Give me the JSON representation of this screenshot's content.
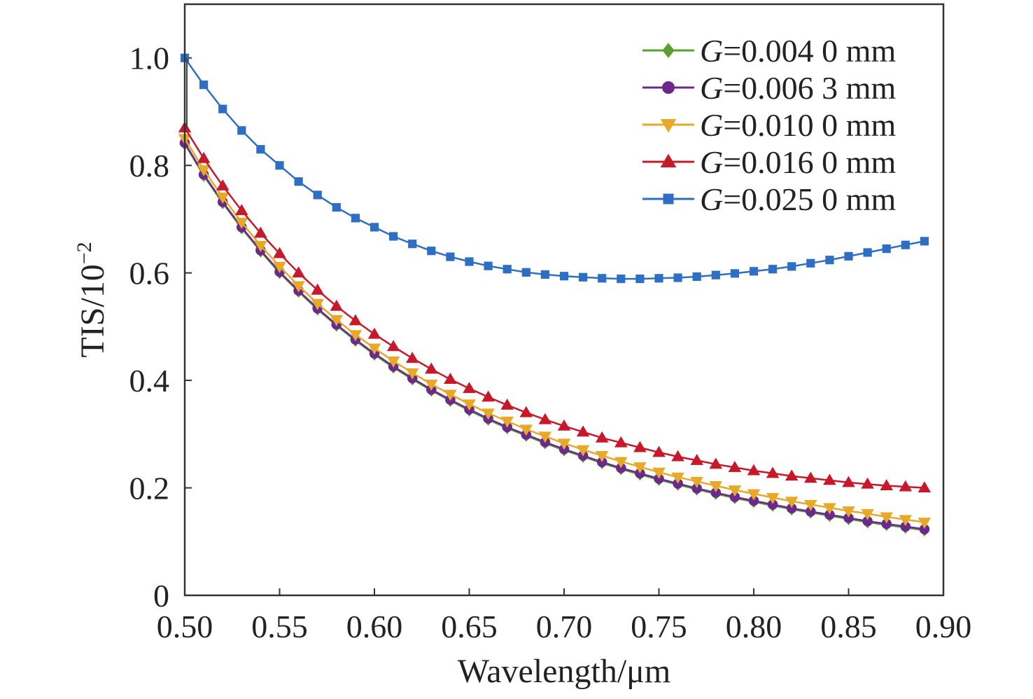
{
  "chart_data": {
    "type": "line",
    "xlabel": "Wavelength/μm",
    "ylabel": "TIS/10",
    "ylabel_exponent": "−2",
    "xlim": [
      0.5,
      0.9
    ],
    "ylim": [
      0,
      1.1
    ],
    "x_ticks": [
      "0.50",
      "0.55",
      "0.60",
      "0.65",
      "0.70",
      "0.75",
      "0.80",
      "0.85",
      "0.90"
    ],
    "y_ticks": [
      "0",
      "0.2",
      "0.4",
      "0.6",
      "0.8",
      "1.0"
    ],
    "legend_position": "top-right",
    "x": [
      0.5,
      0.51,
      0.52,
      0.53,
      0.54,
      0.55,
      0.56,
      0.57,
      0.58,
      0.59,
      0.6,
      0.61,
      0.62,
      0.63,
      0.64,
      0.65,
      0.66,
      0.67,
      0.68,
      0.69,
      0.7,
      0.71,
      0.72,
      0.73,
      0.74,
      0.75,
      0.76,
      0.77,
      0.78,
      0.79,
      0.8,
      0.81,
      0.82,
      0.83,
      0.84,
      0.85,
      0.86,
      0.87,
      0.88,
      0.89
    ],
    "series": [
      {
        "name_prefix": "G",
        "name_rest": "=0.004 0 mm",
        "color": "#5aa02c",
        "marker": "diamond",
        "values": [
          0.84,
          0.781,
          0.73,
          0.683,
          0.64,
          0.6,
          0.565,
          0.532,
          0.502,
          0.474,
          0.448,
          0.424,
          0.402,
          0.381,
          0.362,
          0.344,
          0.327,
          0.311,
          0.297,
          0.283,
          0.27,
          0.258,
          0.246,
          0.235,
          0.225,
          0.215,
          0.206,
          0.197,
          0.189,
          0.181,
          0.174,
          0.167,
          0.16,
          0.154,
          0.148,
          0.142,
          0.136,
          0.131,
          0.126,
          0.121
        ]
      },
      {
        "name_prefix": "G",
        "name_rest": "=0.006 3 mm",
        "color": "#6a2a8c",
        "marker": "circle",
        "values": [
          0.842,
          0.783,
          0.732,
          0.685,
          0.642,
          0.602,
          0.567,
          0.534,
          0.504,
          0.476,
          0.45,
          0.426,
          0.404,
          0.383,
          0.364,
          0.346,
          0.329,
          0.313,
          0.299,
          0.285,
          0.272,
          0.26,
          0.248,
          0.237,
          0.227,
          0.217,
          0.208,
          0.199,
          0.191,
          0.183,
          0.176,
          0.169,
          0.162,
          0.156,
          0.15,
          0.144,
          0.138,
          0.133,
          0.128,
          0.123
        ]
      },
      {
        "name_prefix": "G",
        "name_rest": "=0.010 0 mm",
        "color": "#e8a828",
        "marker": "triangle-down",
        "values": [
          0.85,
          0.792,
          0.741,
          0.694,
          0.651,
          0.612,
          0.576,
          0.543,
          0.513,
          0.485,
          0.46,
          0.436,
          0.414,
          0.393,
          0.374,
          0.356,
          0.339,
          0.324,
          0.309,
          0.296,
          0.283,
          0.271,
          0.26,
          0.249,
          0.239,
          0.229,
          0.22,
          0.212,
          0.204,
          0.196,
          0.189,
          0.182,
          0.175,
          0.169,
          0.163,
          0.157,
          0.152,
          0.146,
          0.141,
          0.136
        ]
      },
      {
        "name_prefix": "G",
        "name_rest": "=0.016 0 mm",
        "color": "#c8192a",
        "marker": "triangle-up",
        "values": [
          0.87,
          0.813,
          0.762,
          0.716,
          0.674,
          0.636,
          0.6,
          0.568,
          0.538,
          0.511,
          0.486,
          0.463,
          0.441,
          0.421,
          0.402,
          0.385,
          0.369,
          0.354,
          0.34,
          0.327,
          0.315,
          0.304,
          0.293,
          0.284,
          0.275,
          0.266,
          0.258,
          0.251,
          0.244,
          0.238,
          0.232,
          0.227,
          0.222,
          0.218,
          0.214,
          0.21,
          0.207,
          0.204,
          0.202,
          0.2
        ]
      },
      {
        "name_prefix": "G",
        "name_rest": "=0.025 0 mm",
        "color": "#2e6fc4",
        "marker": "square",
        "values": [
          1.0,
          0.95,
          0.905,
          0.865,
          0.83,
          0.8,
          0.77,
          0.745,
          0.722,
          0.702,
          0.685,
          0.668,
          0.654,
          0.641,
          0.63,
          0.621,
          0.613,
          0.607,
          0.601,
          0.597,
          0.594,
          0.592,
          0.59,
          0.589,
          0.589,
          0.59,
          0.591,
          0.593,
          0.596,
          0.599,
          0.603,
          0.607,
          0.612,
          0.618,
          0.624,
          0.631,
          0.638,
          0.645,
          0.652,
          0.659
        ]
      }
    ]
  }
}
